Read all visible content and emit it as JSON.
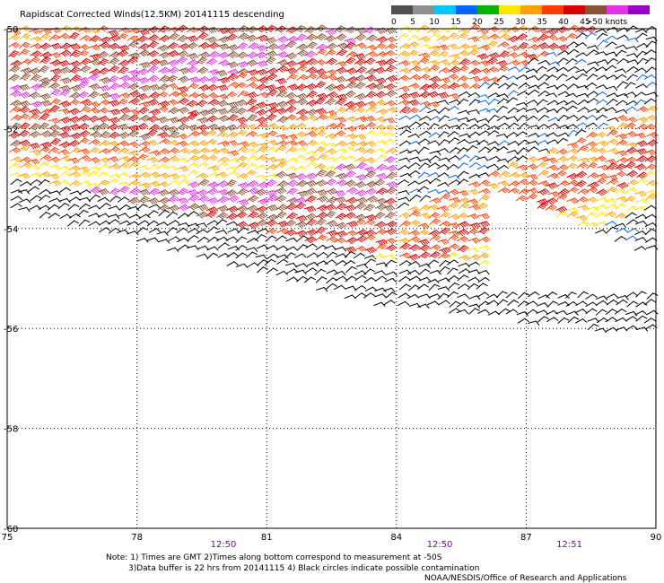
{
  "chart_data": {
    "type": "wind-barb-map",
    "title": "Rapidscat Corrected Winds(12.5KM) 20141115 descending",
    "xlim": [
      75,
      90
    ],
    "ylim": [
      -60,
      -50
    ],
    "x_ticks": [
      "75",
      "78",
      "81",
      "84",
      "87",
      "90"
    ],
    "y_ticks": [
      "-50",
      "-52",
      "-54",
      "-56",
      "-58",
      "-60"
    ],
    "y_tick_values": [
      -50,
      -52,
      -54,
      -56,
      -58,
      -60
    ],
    "x_tick_values": [
      75,
      78,
      81,
      84,
      87,
      90
    ],
    "grid": true,
    "legend_placement": "top-right",
    "legend": {
      "labels": [
        "0",
        "5",
        "10",
        "15",
        "20",
        "25",
        "30",
        "35",
        "40",
        "45",
        ">50 knots"
      ],
      "colors": [
        "#505050",
        "#909090",
        "#00c8ff",
        "#0064ff",
        "#00b400",
        "#ffe600",
        "#ffa000",
        "#ff3c00",
        "#dc0000",
        "#8c5032",
        "#e632e6",
        "#9600c8"
      ]
    },
    "time_labels": [
      {
        "label": "12:50",
        "x": 80
      },
      {
        "label": "12:50",
        "x": 85
      },
      {
        "label": "12:51",
        "x": 88
      }
    ],
    "swaths": [
      {
        "name": "left swath",
        "lon": [
          75,
          84
        ],
        "lat_top": -50,
        "lat_bottom_west": -53.6,
        "lat_bottom_east": -55.7,
        "speeds_kt": [
          30,
          35,
          40,
          45,
          35,
          40,
          30,
          25,
          45,
          40,
          35,
          20,
          10
        ]
      },
      {
        "name": "right swath",
        "lon": [
          84,
          90
        ],
        "lat_top": -50,
        "lat_bottom_west": -55.6,
        "lat_bottom_east": -56.2,
        "speeds_kt": [
          25,
          30,
          35,
          10,
          5,
          10,
          30,
          35,
          25,
          10,
          5,
          20,
          25
        ]
      }
    ]
  },
  "note": {
    "line1": "Note: 1) Times are GMT 2)Times along bottom correspond to measurement at -50S",
    "line2": "3)Data buffer is 22 hrs from 20141115 4) Black circles indicate possible contamination"
  },
  "credit": "NOAA/NESDIS/Office of Research and Applications"
}
